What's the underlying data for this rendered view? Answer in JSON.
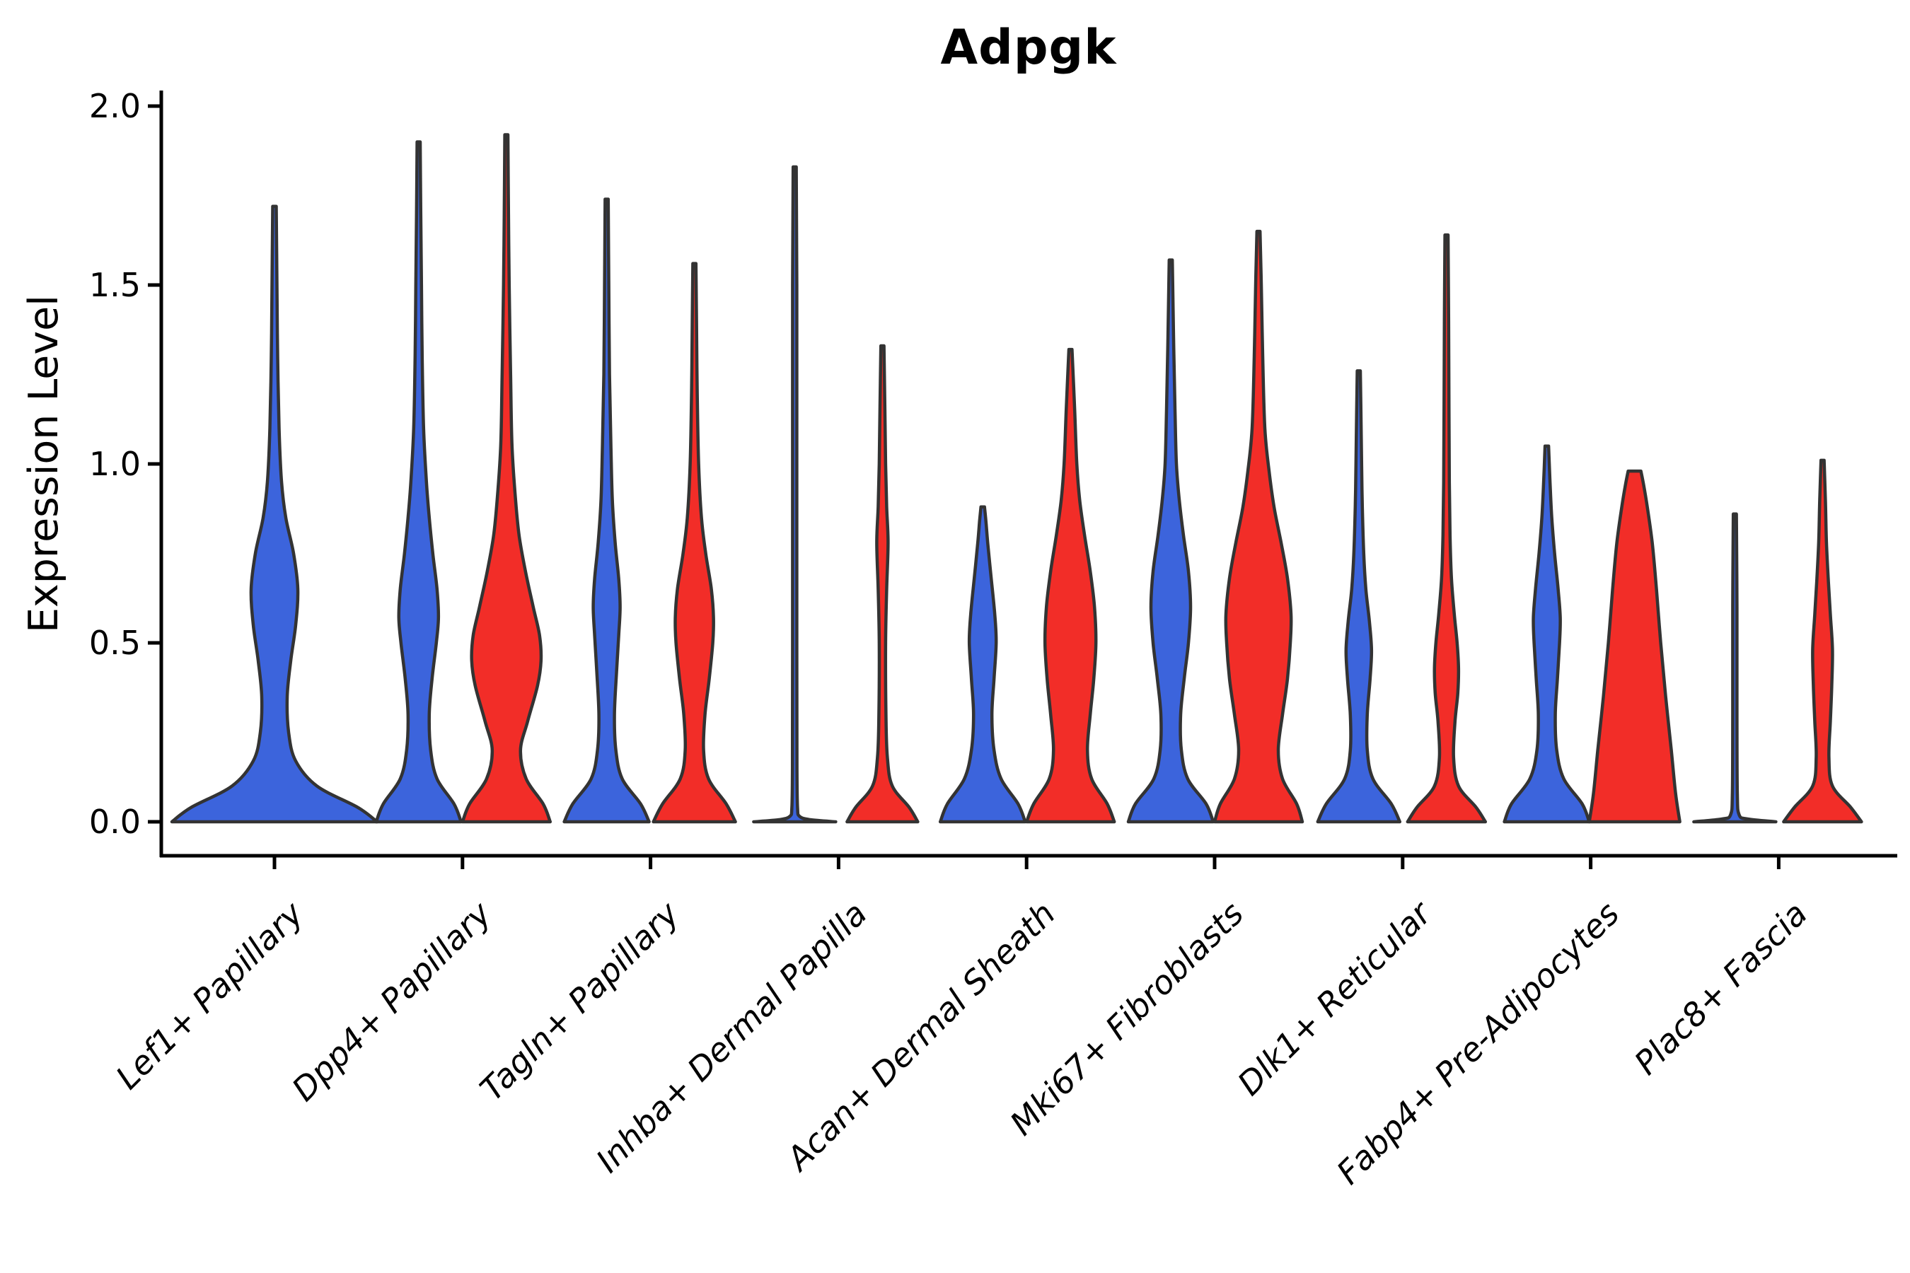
{
  "chart_data": {
    "type": "violin",
    "title": "Adpgk",
    "ylabel": "Expression Level",
    "xlabel": "",
    "ylim": [
      0.0,
      2.0
    ],
    "yticks": [
      "2.0",
      "1.5",
      "1.0",
      "0.5",
      "0.0"
    ],
    "ytick_values": [
      2.0,
      1.5,
      1.0,
      0.5,
      0.0
    ],
    "grid": "off",
    "legend": "none",
    "colors": {
      "blue": "#3C64DC",
      "red": "#F22D28",
      "outline": "#333333",
      "axis": "#000000"
    },
    "categories": [
      "Lef1+ Papillary",
      "Dpp4+ Papillary",
      "Tagln+ Papillary",
      "Inhba+ Dermal Papilla",
      "Acan+ Dermal Sheath",
      "Mki67+ Fibroblasts",
      "Dlk1+ Reticular",
      "Fabp4+ Pre-Adipocytes",
      "Plac8+ Fascia"
    ],
    "violins": [
      {
        "category": "Lef1+ Papillary",
        "group": "blue",
        "position": "center",
        "max_expression": 1.72,
        "profile": [
          [
            0,
            145
          ],
          [
            0.04,
            118
          ],
          [
            0.1,
            60
          ],
          [
            0.17,
            30
          ],
          [
            0.25,
            20
          ],
          [
            0.35,
            18
          ],
          [
            0.45,
            23
          ],
          [
            0.55,
            30
          ],
          [
            0.65,
            33
          ],
          [
            0.75,
            27
          ],
          [
            0.85,
            16
          ],
          [
            0.95,
            10
          ],
          [
            1.1,
            6.5
          ],
          [
            1.3,
            4.5
          ],
          [
            1.5,
            3.5
          ],
          [
            1.72,
            2.5
          ]
        ]
      },
      {
        "category": "Dpp4+ Papillary",
        "group": "blue",
        "position": "left",
        "max_expression": 1.9,
        "profile": [
          [
            0,
            60
          ],
          [
            0.05,
            50
          ],
          [
            0.12,
            26
          ],
          [
            0.2,
            17
          ],
          [
            0.3,
            15
          ],
          [
            0.4,
            19
          ],
          [
            0.5,
            25
          ],
          [
            0.57,
            28
          ],
          [
            0.65,
            26
          ],
          [
            0.75,
            20
          ],
          [
            0.85,
            15
          ],
          [
            0.95,
            11
          ],
          [
            1.1,
            7
          ],
          [
            1.3,
            5
          ],
          [
            1.5,
            4
          ],
          [
            1.7,
            3
          ],
          [
            1.9,
            2.2
          ]
        ]
      },
      {
        "category": "Dpp4+ Papillary",
        "group": "red",
        "position": "right",
        "max_expression": 1.92,
        "profile": [
          [
            0,
            62
          ],
          [
            0.05,
            52
          ],
          [
            0.12,
            28
          ],
          [
            0.2,
            20
          ],
          [
            0.28,
            30
          ],
          [
            0.38,
            44
          ],
          [
            0.45,
            49
          ],
          [
            0.52,
            47
          ],
          [
            0.6,
            38
          ],
          [
            0.7,
            27
          ],
          [
            0.8,
            18
          ],
          [
            0.9,
            13
          ],
          [
            1.05,
            8
          ],
          [
            1.25,
            6
          ],
          [
            1.5,
            4
          ],
          [
            1.7,
            3
          ],
          [
            1.92,
            2.2
          ]
        ]
      },
      {
        "category": "Tagln+ Papillary",
        "group": "blue",
        "position": "left",
        "max_expression": 1.74,
        "profile": [
          [
            0,
            60
          ],
          [
            0.05,
            48
          ],
          [
            0.12,
            22
          ],
          [
            0.2,
            13
          ],
          [
            0.3,
            11
          ],
          [
            0.42,
            14
          ],
          [
            0.52,
            17
          ],
          [
            0.6,
            19
          ],
          [
            0.68,
            17
          ],
          [
            0.78,
            12
          ],
          [
            0.9,
            8
          ],
          [
            1.05,
            6
          ],
          [
            1.25,
            4
          ],
          [
            1.5,
            3
          ],
          [
            1.74,
            2.2
          ]
        ]
      },
      {
        "category": "Tagln+ Papillary",
        "group": "red",
        "position": "right",
        "max_expression": 1.56,
        "profile": [
          [
            0,
            58
          ],
          [
            0.05,
            45
          ],
          [
            0.12,
            20
          ],
          [
            0.2,
            13
          ],
          [
            0.3,
            15
          ],
          [
            0.4,
            21
          ],
          [
            0.5,
            26
          ],
          [
            0.57,
            27
          ],
          [
            0.65,
            24
          ],
          [
            0.75,
            16
          ],
          [
            0.85,
            10
          ],
          [
            1.0,
            6
          ],
          [
            1.2,
            4
          ],
          [
            1.4,
            3
          ],
          [
            1.56,
            2.2
          ]
        ]
      },
      {
        "category": "Inhba+ Dermal Papilla",
        "group": "blue",
        "position": "left",
        "max_expression": 1.83,
        "profile": [
          [
            0,
            58
          ],
          [
            0.006,
            22
          ],
          [
            0.015,
            7
          ],
          [
            0.04,
            4
          ],
          [
            0.15,
            3.2
          ],
          [
            0.5,
            3
          ],
          [
            1.0,
            3
          ],
          [
            1.5,
            3
          ],
          [
            1.83,
            2.2
          ]
        ]
      },
      {
        "category": "Inhba+ Dermal Papilla",
        "group": "red",
        "position": "right",
        "max_expression": 1.33,
        "profile": [
          [
            0,
            50
          ],
          [
            0.04,
            38
          ],
          [
            0.1,
            14
          ],
          [
            0.18,
            7
          ],
          [
            0.3,
            5
          ],
          [
            0.5,
            4.5
          ],
          [
            0.65,
            6
          ],
          [
            0.78,
            8
          ],
          [
            0.88,
            6
          ],
          [
            1.0,
            4.5
          ],
          [
            1.15,
            3.5
          ],
          [
            1.33,
            2.2
          ]
        ]
      },
      {
        "category": "Acan+ Dermal Sheath",
        "group": "blue",
        "position": "left",
        "max_expression": 0.88,
        "profile": [
          [
            0,
            60
          ],
          [
            0.05,
            50
          ],
          [
            0.12,
            26
          ],
          [
            0.2,
            16
          ],
          [
            0.3,
            13
          ],
          [
            0.4,
            16
          ],
          [
            0.5,
            19
          ],
          [
            0.58,
            17
          ],
          [
            0.68,
            12
          ],
          [
            0.78,
            7
          ],
          [
            0.84,
            4.5
          ],
          [
            0.88,
            2.5
          ]
        ]
      },
      {
        "category": "Acan+ Dermal Sheath",
        "group": "red",
        "position": "right",
        "max_expression": 1.32,
        "profile": [
          [
            0,
            62
          ],
          [
            0.05,
            52
          ],
          [
            0.12,
            30
          ],
          [
            0.2,
            24
          ],
          [
            0.3,
            28
          ],
          [
            0.4,
            33
          ],
          [
            0.5,
            36
          ],
          [
            0.6,
            34
          ],
          [
            0.7,
            28
          ],
          [
            0.8,
            20
          ],
          [
            0.9,
            13
          ],
          [
            1.0,
            9
          ],
          [
            1.15,
            6
          ],
          [
            1.32,
            2.2
          ]
        ]
      },
      {
        "category": "Mki67+ Fibroblasts",
        "group": "blue",
        "position": "left",
        "max_expression": 1.57,
        "profile": [
          [
            0,
            60
          ],
          [
            0.05,
            50
          ],
          [
            0.12,
            24
          ],
          [
            0.2,
            15
          ],
          [
            0.3,
            14
          ],
          [
            0.4,
            19
          ],
          [
            0.5,
            25
          ],
          [
            0.6,
            28
          ],
          [
            0.7,
            25
          ],
          [
            0.8,
            18
          ],
          [
            0.9,
            12
          ],
          [
            1.0,
            8
          ],
          [
            1.15,
            6
          ],
          [
            1.35,
            4
          ],
          [
            1.57,
            2.2
          ]
        ]
      },
      {
        "category": "Mki67+ Fibroblasts",
        "group": "red",
        "position": "right",
        "max_expression": 1.65,
        "profile": [
          [
            0,
            62
          ],
          [
            0.05,
            54
          ],
          [
            0.12,
            34
          ],
          [
            0.2,
            28
          ],
          [
            0.3,
            34
          ],
          [
            0.4,
            41
          ],
          [
            0.5,
            45
          ],
          [
            0.58,
            46
          ],
          [
            0.68,
            41
          ],
          [
            0.78,
            32
          ],
          [
            0.88,
            22
          ],
          [
            0.98,
            15
          ],
          [
            1.1,
            9
          ],
          [
            1.3,
            6
          ],
          [
            1.5,
            4
          ],
          [
            1.65,
            2.2
          ]
        ]
      },
      {
        "category": "Dlk1+ Reticular",
        "group": "blue",
        "position": "left",
        "max_expression": 1.26,
        "profile": [
          [
            0,
            58
          ],
          [
            0.05,
            46
          ],
          [
            0.12,
            20
          ],
          [
            0.2,
            12
          ],
          [
            0.3,
            12
          ],
          [
            0.4,
            16
          ],
          [
            0.48,
            18
          ],
          [
            0.56,
            15
          ],
          [
            0.65,
            10
          ],
          [
            0.75,
            7
          ],
          [
            0.88,
            5
          ],
          [
            1.0,
            4
          ],
          [
            1.15,
            3
          ],
          [
            1.26,
            2.2
          ]
        ]
      },
      {
        "category": "Dlk1+ Reticular",
        "group": "red",
        "position": "right",
        "max_expression": 1.64,
        "profile": [
          [
            0,
            55
          ],
          [
            0.04,
            42
          ],
          [
            0.1,
            17
          ],
          [
            0.18,
            10
          ],
          [
            0.28,
            12
          ],
          [
            0.36,
            16
          ],
          [
            0.43,
            17
          ],
          [
            0.5,
            15
          ],
          [
            0.58,
            11
          ],
          [
            0.68,
            7
          ],
          [
            0.8,
            5
          ],
          [
            0.95,
            4
          ],
          [
            1.15,
            3.5
          ],
          [
            1.4,
            3
          ],
          [
            1.64,
            2.2
          ]
        ]
      },
      {
        "category": "Fabp4+ Pre-Adipocytes",
        "group": "blue",
        "position": "left",
        "max_expression": 1.05,
        "profile": [
          [
            0,
            60
          ],
          [
            0.05,
            50
          ],
          [
            0.12,
            24
          ],
          [
            0.2,
            14
          ],
          [
            0.3,
            12
          ],
          [
            0.4,
            15
          ],
          [
            0.5,
            18
          ],
          [
            0.57,
            19
          ],
          [
            0.65,
            16
          ],
          [
            0.75,
            11
          ],
          [
            0.85,
            7
          ],
          [
            0.95,
            4.5
          ],
          [
            1.05,
            2.5
          ]
        ]
      },
      {
        "category": "Fabp4+ Pre-Adipocytes",
        "group": "red",
        "position": "right",
        "max_expression": 0.98,
        "profile": [
          [
            0,
            64
          ],
          [
            0.08,
            58
          ],
          [
            0.2,
            52
          ],
          [
            0.35,
            44
          ],
          [
            0.5,
            37
          ],
          [
            0.65,
            31
          ],
          [
            0.78,
            25
          ],
          [
            0.88,
            18
          ],
          [
            0.94,
            13
          ],
          [
            0.98,
            9
          ]
        ]
      },
      {
        "category": "Plac8+ Fascia",
        "group": "blue",
        "position": "left",
        "max_expression": 0.86,
        "profile": [
          [
            0,
            58
          ],
          [
            0.008,
            18
          ],
          [
            0.02,
            6
          ],
          [
            0.08,
            3.5
          ],
          [
            0.3,
            3
          ],
          [
            0.6,
            3
          ],
          [
            0.86,
            2.2
          ]
        ]
      },
      {
        "category": "Plac8+ Fascia",
        "group": "red",
        "position": "right",
        "max_expression": 1.01,
        "profile": [
          [
            0,
            55
          ],
          [
            0.04,
            40
          ],
          [
            0.1,
            14
          ],
          [
            0.18,
            9
          ],
          [
            0.28,
            11
          ],
          [
            0.38,
            13
          ],
          [
            0.48,
            14
          ],
          [
            0.58,
            11
          ],
          [
            0.68,
            8
          ],
          [
            0.78,
            5.5
          ],
          [
            0.9,
            4
          ],
          [
            1.01,
            2.2
          ]
        ]
      }
    ]
  }
}
